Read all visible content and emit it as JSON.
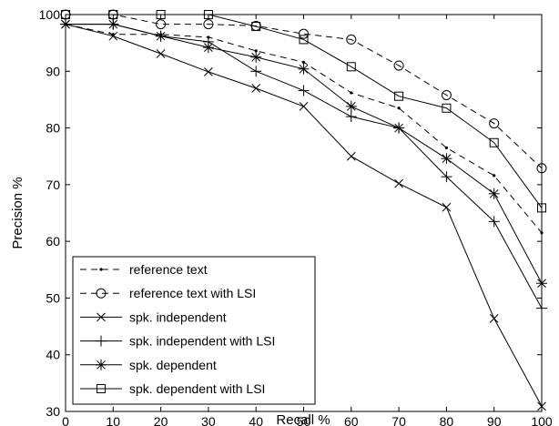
{
  "chart_data": {
    "type": "line",
    "title": "",
    "xlabel": "Recall %",
    "ylabel": "Precision %",
    "xlim": [
      0,
      100
    ],
    "ylim": [
      30,
      100
    ],
    "xticks": [
      0,
      10,
      20,
      30,
      40,
      50,
      60,
      70,
      80,
      90,
      100
    ],
    "yticks": [
      30,
      40,
      50,
      60,
      70,
      80,
      90,
      100
    ],
    "grid": false,
    "legend_position": "bottom-left",
    "x": [
      0,
      10,
      20,
      30,
      40,
      50,
      60,
      70,
      80,
      90,
      100
    ],
    "series": [
      {
        "name": "reference text",
        "line": "dashed",
        "marker": "dot",
        "values": [
          98.3,
          96.5,
          96.5,
          96.0,
          93.6,
          91.6,
          86.2,
          83.5,
          76.5,
          71.6,
          61.5
        ]
      },
      {
        "name": "reference text with LSI",
        "line": "dashed",
        "marker": "circle",
        "values": [
          100,
          100,
          98.3,
          98.3,
          98.0,
          96.6,
          95.6,
          91.0,
          85.8,
          80.8,
          72.9
        ]
      },
      {
        "name": "spk. independent",
        "line": "solid",
        "marker": "x",
        "values": [
          98.3,
          96.2,
          93.1,
          89.9,
          87.0,
          83.8,
          75.0,
          70.2,
          66.0,
          46.4,
          30.9
        ]
      },
      {
        "name": "spk. independent with LSI",
        "line": "solid",
        "marker": "plus",
        "values": [
          98.3,
          98.3,
          96.2,
          95.2,
          90.0,
          86.6,
          82.0,
          80.0,
          71.4,
          63.5,
          48.2
        ]
      },
      {
        "name": "spk. dependent",
        "line": "solid",
        "marker": "star",
        "values": [
          98.3,
          98.3,
          96.2,
          94.2,
          92.5,
          90.4,
          83.8,
          80.0,
          74.6,
          68.4,
          52.6
        ]
      },
      {
        "name": "spk. dependent with LSI",
        "line": "solid",
        "marker": "square",
        "values": [
          100,
          100,
          100,
          100,
          97.9,
          95.6,
          90.8,
          85.6,
          83.5,
          77.4,
          65.9
        ]
      }
    ]
  }
}
